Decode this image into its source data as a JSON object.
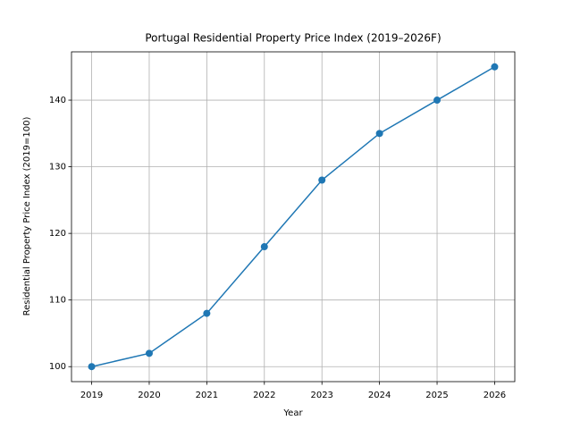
{
  "chart_data": {
    "type": "line",
    "title": "Portugal Residential Property Price Index (2019–2026F)",
    "x_label": "Year",
    "y_label": "Residential Property Price Index (2019=100)",
    "x": [
      2019,
      2020,
      2021,
      2022,
      2023,
      2024,
      2025,
      2026
    ],
    "values": [
      100,
      102,
      108,
      118,
      128,
      135,
      140,
      145
    ],
    "color": "#1f77b4",
    "marker": "o",
    "xlim": [
      2018.65,
      2026.35
    ],
    "xticks": [
      2019,
      2020,
      2021,
      2022,
      2023,
      2024,
      2025,
      2026
    ],
    "ylim": [
      97.75,
      147.25
    ],
    "yticks": [
      100,
      110,
      120,
      130,
      140
    ],
    "grid": true
  }
}
